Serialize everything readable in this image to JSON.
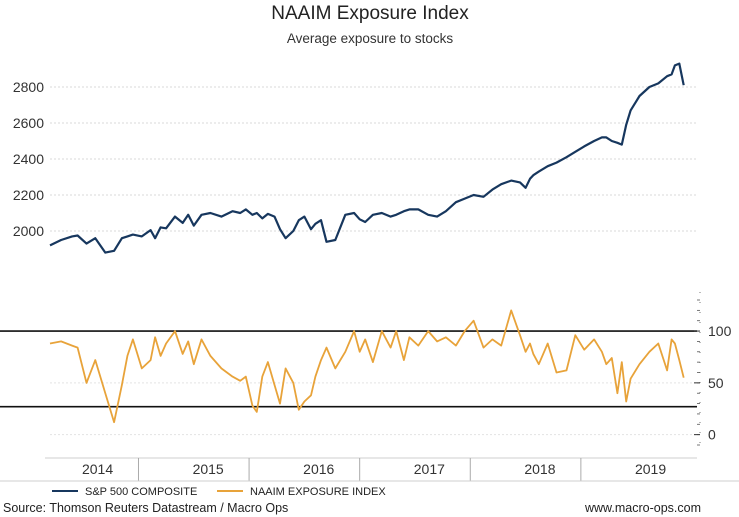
{
  "chart_data": [
    {
      "type": "line",
      "title": "NAAIM Exposure Index",
      "subtitle": "Average exposure to stocks",
      "ylim": [
        1850,
        2950
      ],
      "yticks": [
        "2000",
        "2200",
        "2400",
        "2600",
        "2800"
      ],
      "ytick_values": [
        2000,
        2200,
        2400,
        2600,
        2800
      ],
      "series": [
        {
          "name": "S&P 500 COMPOSITE",
          "color": "#17375e",
          "x": [
            2013.75,
            2013.85,
            2013.95,
            2014.0,
            2014.08,
            2014.16,
            2014.25,
            2014.33,
            2014.4,
            2014.45,
            2014.5,
            2014.58,
            2014.66,
            2014.7,
            2014.75,
            2014.8,
            2014.88,
            2014.95,
            2015.0,
            2015.05,
            2015.12,
            2015.2,
            2015.3,
            2015.4,
            2015.47,
            2015.52,
            2015.58,
            2015.62,
            2015.67,
            2015.72,
            2015.78,
            2015.83,
            2015.88,
            2015.95,
            2016.0,
            2016.05,
            2016.11,
            2016.15,
            2016.2,
            2016.25,
            2016.33,
            2016.42,
            2016.5,
            2016.55,
            2016.6,
            2016.67,
            2016.75,
            2016.83,
            2016.88,
            2016.95,
            2017.0,
            2017.08,
            2017.17,
            2017.25,
            2017.33,
            2017.42,
            2017.5,
            2017.58,
            2017.67,
            2017.75,
            2017.83,
            2017.92,
            2018.0,
            2018.05,
            2018.09,
            2018.12,
            2018.17,
            2018.25,
            2018.33,
            2018.42,
            2018.5,
            2018.58,
            2018.67,
            2018.74,
            2018.78,
            2018.83,
            2018.88,
            2018.92,
            2018.96,
            2019.0,
            2019.08,
            2019.17,
            2019.25,
            2019.33,
            2019.37,
            2019.4,
            2019.44,
            2019.48
          ],
          "values": [
            1920,
            1950,
            1970,
            1975,
            1930,
            1960,
            1880,
            1890,
            1960,
            1970,
            1980,
            1970,
            2005,
            1960,
            2020,
            2015,
            2080,
            2045,
            2090,
            2030,
            2090,
            2100,
            2080,
            2110,
            2100,
            2120,
            2090,
            2100,
            2070,
            2095,
            2080,
            2010,
            1960,
            2000,
            2060,
            2080,
            2010,
            2040,
            2060,
            1940,
            1950,
            2090,
            2100,
            2065,
            2050,
            2090,
            2100,
            2080,
            2090,
            2110,
            2120,
            2120,
            2090,
            2080,
            2110,
            2160,
            2180,
            2200,
            2190,
            2230,
            2260,
            2280,
            2270,
            2240,
            2290,
            2310,
            2330,
            2360,
            2380,
            2410,
            2440,
            2470,
            2500,
            2520,
            2520,
            2500,
            2490,
            2480,
            2590,
            2670,
            2750,
            2800,
            2820,
            2860,
            2870,
            2920,
            2930,
            2810
          ],
          "line_width": 2.2
        },
        {
          "name": "NAAIM EXPOSURE INDEX",
          "color": "#e8a33a",
          "x": [
            2013.75,
            2013.85,
            2013.95,
            2014.0,
            2014.08,
            2014.16,
            2014.25,
            2014.33,
            2014.4,
            2014.45,
            2014.5,
            2014.58,
            2014.66,
            2014.7,
            2014.75,
            2014.8,
            2014.88,
            2014.95,
            2015.0,
            2015.05,
            2015.12,
            2015.2,
            2015.3,
            2015.4,
            2015.47,
            2015.52,
            2015.58,
            2015.62,
            2015.67,
            2015.72,
            2015.78,
            2015.83,
            2015.88,
            2015.95,
            2016.0,
            2016.05,
            2016.11,
            2016.15,
            2016.2,
            2016.25,
            2016.33,
            2016.42,
            2016.5,
            2016.55,
            2016.6,
            2016.67,
            2016.75,
            2016.83,
            2016.88,
            2016.95,
            2017.0,
            2017.08,
            2017.17,
            2017.25,
            2017.33,
            2017.42,
            2017.5,
            2017.58,
            2017.67,
            2017.75,
            2017.83,
            2017.92,
            2018.0,
            2018.05,
            2018.09,
            2018.12,
            2018.17,
            2018.25,
            2018.33,
            2018.42,
            2018.5,
            2018.58,
            2018.67,
            2018.74,
            2018.78,
            2018.83,
            2018.88,
            2018.92,
            2018.96,
            2019.0,
            2019.08,
            2019.17,
            2019.25,
            2019.33,
            2019.37,
            2019.4,
            2019.44,
            2019.48
          ],
          "values": [
            88,
            90,
            86,
            84,
            50,
            72,
            40,
            12,
            48,
            76,
            92,
            64,
            72,
            94,
            76,
            88,
            100,
            78,
            90,
            68,
            92,
            76,
            64,
            56,
            52,
            56,
            28,
            22,
            56,
            70,
            48,
            30,
            64,
            50,
            24,
            32,
            38,
            56,
            72,
            84,
            64,
            80,
            100,
            80,
            92,
            70,
            100,
            84,
            100,
            72,
            94,
            86,
            100,
            90,
            94,
            86,
            100,
            110,
            84,
            92,
            86,
            120,
            96,
            80,
            88,
            78,
            68,
            88,
            60,
            62,
            96,
            82,
            92,
            80,
            68,
            74,
            40,
            70,
            32,
            54,
            68,
            80,
            88,
            62,
            92,
            88,
            72,
            55
          ],
          "line_width": 1.8
        }
      ],
      "xlim": [
        2013.75,
        2019.6
      ]
    },
    {
      "type": "line",
      "ylim": [
        -10,
        130
      ],
      "yticks": [
        "0",
        "50",
        "100"
      ],
      "ytick_values": [
        0,
        50,
        100
      ],
      "reference_lines": [
        100,
        27
      ]
    }
  ],
  "x_labels": [
    {
      "label": "2014",
      "x": 2014.18
    },
    {
      "label": "2015",
      "x": 2015.18
    },
    {
      "label": "2016",
      "x": 2016.18
    },
    {
      "label": "2017",
      "x": 2017.18
    },
    {
      "label": "2018",
      "x": 2018.18
    },
    {
      "label": "2019",
      "x": 2019.18
    }
  ],
  "year_boundaries": [
    2014.55,
    2015.55,
    2016.55,
    2017.55,
    2018.55
  ],
  "legend": [
    {
      "label": "S&P 500 COMPOSITE",
      "color": "#17375e"
    },
    {
      "label": "NAAIM EXPOSURE INDEX",
      "color": "#e8a33a"
    }
  ],
  "footer": {
    "source": "Source: Thomson Reuters Datastream / Macro Ops",
    "website": "www.macro-ops.com"
  }
}
